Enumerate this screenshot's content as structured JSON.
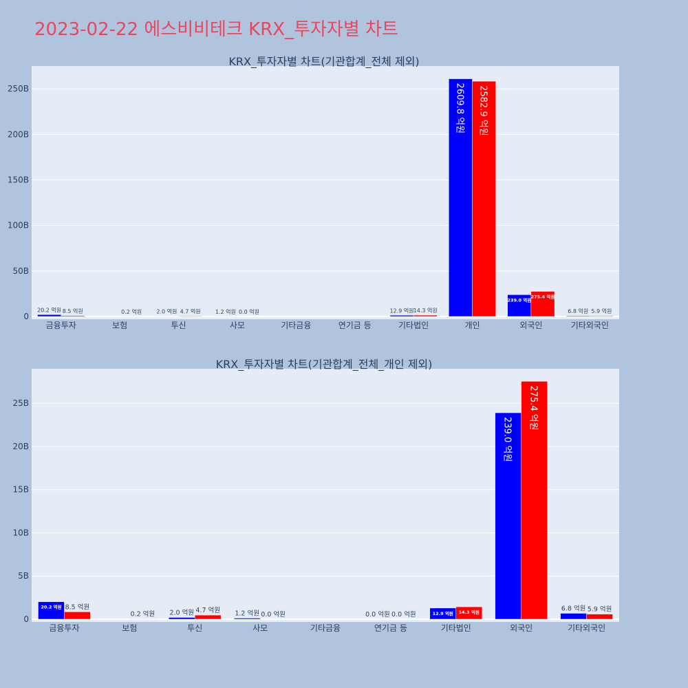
{
  "title": "2023-02-22 에스비비테크 KRX_투자자별 차트",
  "colors": {
    "background": "#b0c4de",
    "plot_background": "#e5ecf6",
    "title": "#e8475f",
    "series_a": "#0000ff",
    "series_b": "#ff0000",
    "text": "#2a3f5f"
  },
  "chart_data": [
    {
      "type": "bar",
      "title": "KRX_투자자별 차트(기관합계_전체 제외)",
      "categories": [
        "금융투자",
        "보험",
        "투신",
        "사모",
        "기타금융",
        "연기금 등",
        "기타법인",
        "개인",
        "외국인",
        "기타외국인"
      ],
      "ylim": [
        0,
        275
      ],
      "y_unit": "B",
      "yticks": [
        0,
        50,
        100,
        150,
        200,
        250
      ],
      "ytick_labels": [
        "0",
        "50B",
        "100B",
        "150B",
        "200B",
        "250B"
      ],
      "grid": true,
      "legend": "none",
      "series": [
        {
          "color": "#0000ff",
          "values": [
            2.02,
            null,
            0.2,
            0.12,
            null,
            null,
            1.29,
            260.98,
            23.9,
            0.68
          ],
          "labels": [
            "20.2 억원",
            "",
            "2.0 억원",
            "1.2 억원",
            "",
            "",
            "12.9 억원",
            "2609.8 억원",
            "239.0 억원",
            "6.8 억원"
          ]
        },
        {
          "color": "#ff0000",
          "values": [
            0.85,
            0.02,
            0.47,
            0.0,
            null,
            null,
            1.43,
            258.29,
            27.54,
            0.59
          ],
          "labels": [
            "8.5 억원",
            "0.2 억원",
            "4.7 억원",
            "0.0 억원",
            "",
            "",
            "14.3 억원",
            "2582.9 억원",
            "275.4 억원",
            "5.9 억원"
          ]
        }
      ]
    },
    {
      "type": "bar",
      "title": "KRX_투자자별 차트(기관합계_전체_개인 제외)",
      "categories": [
        "금융투자",
        "보험",
        "투신",
        "사모",
        "기타금융",
        "연기금 등",
        "기타법인",
        "외국인",
        "기타외국인"
      ],
      "ylim": [
        0,
        29
      ],
      "y_unit": "B",
      "yticks": [
        0,
        5,
        10,
        15,
        20,
        25
      ],
      "ytick_labels": [
        "0",
        "5B",
        "10B",
        "15B",
        "20B",
        "25B"
      ],
      "grid": true,
      "legend": "none",
      "series": [
        {
          "color": "#0000ff",
          "values": [
            2.02,
            null,
            0.2,
            0.12,
            null,
            0.0,
            1.29,
            23.9,
            0.68
          ],
          "labels": [
            "20.2 억원",
            "",
            "2.0 억원",
            "1.2 억원",
            "",
            "0.0 억원",
            "12.9 억원",
            "239.0 억원",
            "6.8 억원"
          ]
        },
        {
          "color": "#ff0000",
          "values": [
            0.85,
            0.02,
            0.47,
            0.0,
            null,
            0.0,
            1.43,
            27.54,
            0.59
          ],
          "labels": [
            "8.5 억원",
            "0.2 억원",
            "4.7 억원",
            "0.0 억원",
            "",
            "0.0 억원",
            "14.3 억원",
            "275.4 억원",
            "5.9 억원"
          ]
        }
      ]
    }
  ]
}
